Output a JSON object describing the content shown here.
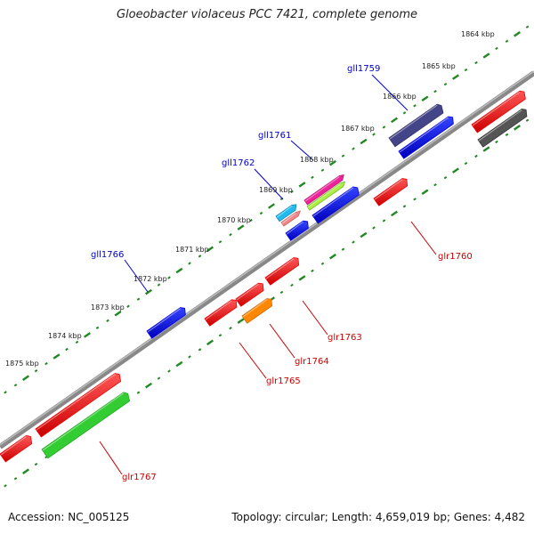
{
  "title": "Gloeobacter violaceus PCC 7421, complete genome",
  "footer": {
    "accession": "Accession: NC_005125",
    "info": "Topology: circular; Length: 4,659,019 bp; Genes: 4,482"
  },
  "scale_labels": [
    "1864 kbp",
    "1865 kbp",
    "1866 kbp",
    "1867 kbp",
    "1868 kbp",
    "1869 kbp",
    "1870 kbp",
    "1871 kbp",
    "1872 kbp",
    "1873 kbp",
    "1874 kbp",
    "1875 kbp"
  ],
  "gene_labels": [
    {
      "text": "gll1759",
      "strand": "minus"
    },
    {
      "text": "gll1761",
      "strand": "minus"
    },
    {
      "text": "gll1762",
      "strand": "minus"
    },
    {
      "text": "gll1766",
      "strand": "minus"
    },
    {
      "text": "glr1760",
      "strand": "plus"
    },
    {
      "text": "glr1763",
      "strand": "plus"
    },
    {
      "text": "glr1764",
      "strand": "plus"
    },
    {
      "text": "glr1765",
      "strand": "plus"
    },
    {
      "text": "glr1767",
      "strand": "plus"
    }
  ],
  "colors": {
    "backbone": "#888888",
    "ticks": "#228822",
    "gene_red": "#ee0000",
    "gene_blue": "#0000ee",
    "gene_green": "#33cc33",
    "gene_navy": "#444488",
    "gene_grey": "#555555",
    "gene_orange": "#ff8800",
    "gene_cyan": "#22bbee",
    "gene_pink": "#ee8888",
    "gene_magenta": "#ee2299",
    "gene_lime": "#aaee44"
  }
}
